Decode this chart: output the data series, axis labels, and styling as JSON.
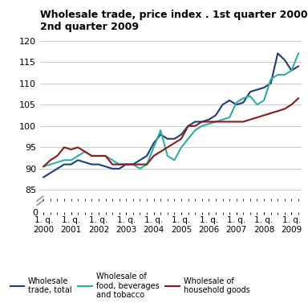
{
  "title": "Wholesale trade, price index . 1st quarter 2000-\n2nd quarter 2009",
  "ylim_main": [
    83,
    121
  ],
  "ylim_break": [
    0,
    2
  ],
  "yticks_main": [
    85,
    90,
    95,
    100,
    105,
    110,
    115,
    120
  ],
  "ytick_labels_main": [
    "85",
    "90",
    "95",
    "100",
    "105",
    "110",
    "115",
    "120"
  ],
  "x_labels": [
    "1. q.\n2000",
    "1. q.\n2001",
    "1. q.\n2002",
    "1. q.\n2003",
    "1. q.\n2004",
    "1. q.\n2005",
    "1. q.\n2006",
    "1. q.\n2007",
    "1. q.\n2008",
    "1. q.\n2009"
  ],
  "x_tick_positions": [
    0,
    4,
    8,
    12,
    16,
    20,
    24,
    28,
    32,
    36
  ],
  "wholesale_total": [
    88.0,
    89.0,
    90.0,
    91.0,
    91.0,
    92.0,
    91.5,
    91.0,
    91.0,
    90.5,
    90.0,
    90.0,
    91.0,
    91.0,
    92.0,
    93.0,
    96.0,
    98.0,
    97.0,
    97.0,
    98.0,
    100.0,
    101.0,
    101.0,
    101.5,
    102.5,
    105.0,
    106.0,
    105.0,
    105.5,
    108.0,
    108.5,
    109.0,
    110.0,
    117.0,
    115.5,
    113.0,
    114.0
  ],
  "wholesale_food": [
    90.5,
    91.0,
    91.5,
    92.0,
    92.0,
    93.0,
    94.0,
    93.0,
    93.0,
    93.0,
    92.0,
    91.0,
    91.0,
    91.0,
    90.0,
    91.0,
    95.0,
    99.0,
    93.0,
    92.0,
    95.0,
    97.0,
    99.0,
    100.0,
    100.5,
    101.0,
    101.5,
    102.0,
    105.5,
    106.5,
    107.0,
    105.0,
    106.0,
    111.0,
    112.0,
    112.0,
    113.0,
    117.0
  ],
  "wholesale_household": [
    90.5,
    92.0,
    93.0,
    95.0,
    94.5,
    95.0,
    94.0,
    93.0,
    93.0,
    93.0,
    91.0,
    91.0,
    91.0,
    91.0,
    91.0,
    91.0,
    93.0,
    94.0,
    95.0,
    96.0,
    97.0,
    100.0,
    100.0,
    101.0,
    101.0,
    101.0,
    101.0,
    101.0,
    101.0,
    101.0,
    101.5,
    102.0,
    102.5,
    103.0,
    103.5,
    104.0,
    105.0,
    106.5
  ],
  "color_total": "#1f3d7a",
  "color_food": "#2ab0a0",
  "color_household": "#8b1a1a",
  "line_width": 1.5,
  "background_color": "#ffffff",
  "grid_color": "#cccccc",
  "legend_labels": [
    "Wholesale\ntrade, total",
    "Wholesale of\nfood, beverages\nand tobacco",
    "Wholesale of\nhousehold goods"
  ]
}
